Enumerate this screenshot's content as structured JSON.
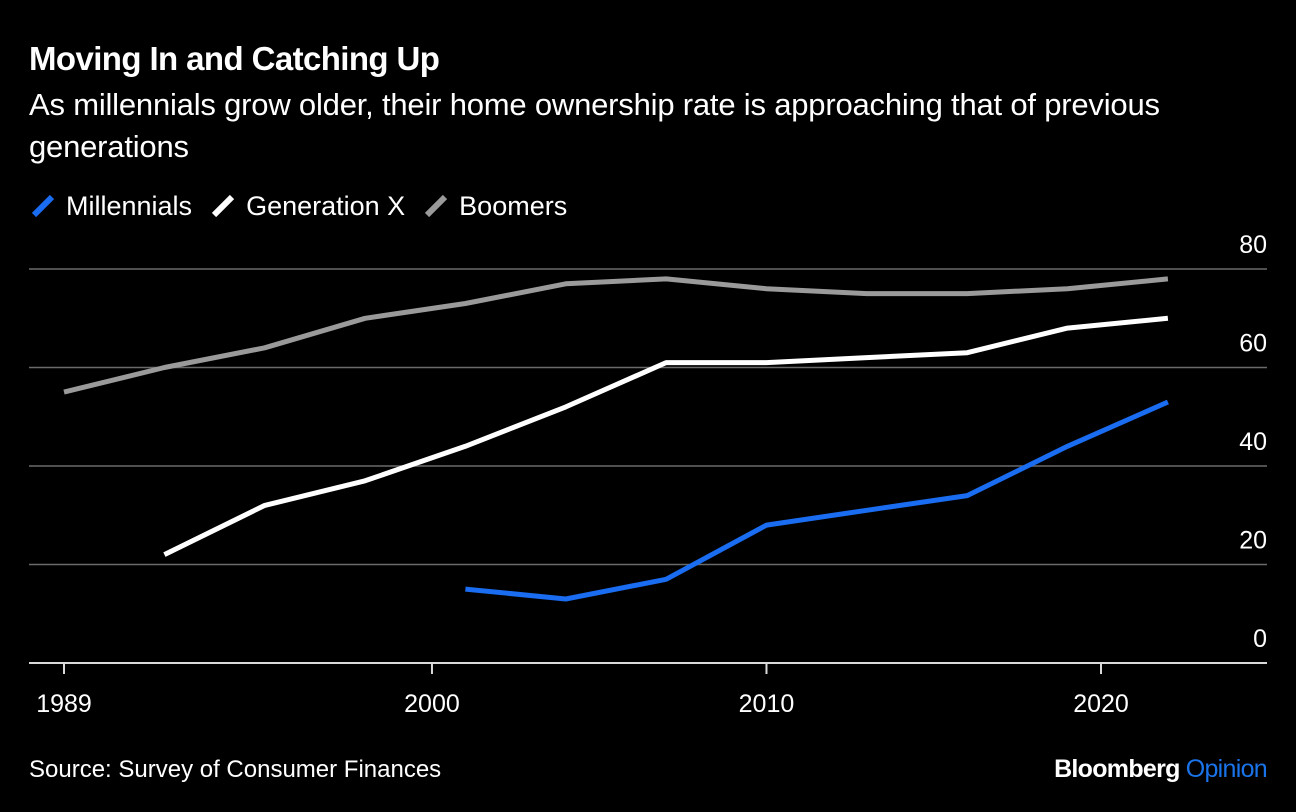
{
  "chart_data": {
    "type": "line",
    "title": "Moving In and Catching Up",
    "subtitle": "As millennials grow older, their home ownership rate is approaching that of previous generations",
    "xlabel": "",
    "ylabel": "",
    "xlim": [
      1988,
      2025
    ],
    "ylim": [
      0,
      80
    ],
    "x_ticks": [
      "1989",
      "2000",
      "2010",
      "2020"
    ],
    "y_ticks": [
      "0",
      "20",
      "40",
      "60",
      "80"
    ],
    "grid": true,
    "legend_position": "top-left",
    "series": [
      {
        "name": "Millennials",
        "color": "#1a6cf0",
        "x": [
          2001,
          2004,
          2007,
          2010,
          2013,
          2016,
          2019,
          2022
        ],
        "y": [
          15,
          13,
          17,
          28,
          31,
          34,
          44,
          53
        ]
      },
      {
        "name": "Generation X",
        "color": "#ffffff",
        "x": [
          1992,
          1995,
          1998,
          2001,
          2004,
          2007,
          2010,
          2013,
          2016,
          2019,
          2022
        ],
        "y": [
          22,
          32,
          37,
          44,
          52,
          61,
          61,
          62,
          63,
          68,
          70
        ]
      },
      {
        "name": "Boomers",
        "color": "#9a9a9a",
        "x": [
          1989,
          1992,
          1995,
          1998,
          2001,
          2004,
          2007,
          2010,
          2013,
          2016,
          2019,
          2022
        ],
        "y": [
          55,
          60,
          64,
          70,
          73,
          77,
          78,
          76,
          75,
          75,
          76,
          78
        ]
      }
    ]
  },
  "footer": {
    "source": "Source: Survey of Consumer Finances",
    "brand_main": "Bloomberg",
    "brand_accent": "Opinion"
  }
}
